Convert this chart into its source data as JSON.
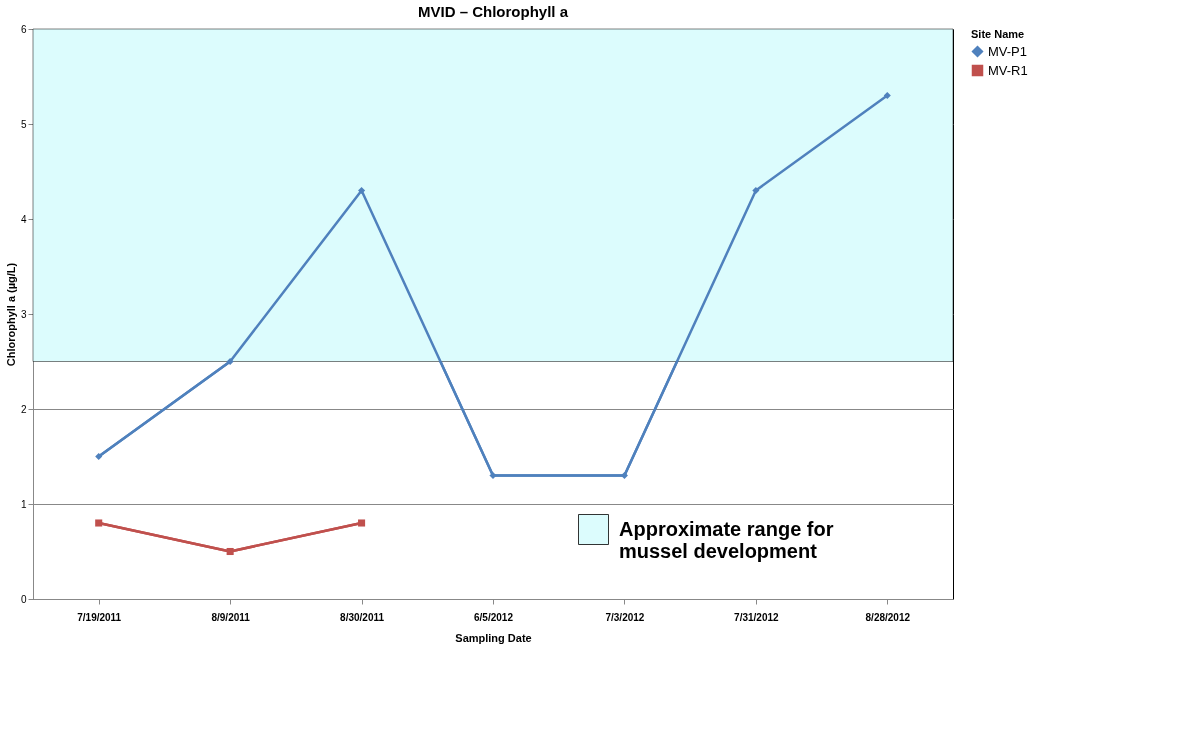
{
  "chart_data": {
    "type": "line",
    "title": "MVID – Chlorophyll  a",
    "xlabel": "Sampling Date",
    "ylabel": "Chlorophyll a (µg/L)",
    "legend_title": "Site Name",
    "categories": [
      "7/19/2011",
      "8/9/2011",
      "8/30/2011",
      "6/5/2012",
      "7/3/2012",
      "7/31/2012",
      "8/28/2012"
    ],
    "series": [
      {
        "name": "MV-P1",
        "color": "#4f81bd",
        "marker": "diamond",
        "values": [
          1.5,
          2.5,
          4.3,
          1.3,
          1.3,
          4.3,
          5.3
        ]
      },
      {
        "name": "MV-R1",
        "color": "#c0504d",
        "marker": "square",
        "values": [
          0.8,
          0.5,
          0.8,
          null,
          null,
          null,
          null
        ]
      }
    ],
    "ylim": [
      0,
      6
    ],
    "yticks": [
      0,
      1,
      2,
      3,
      4,
      5,
      6
    ],
    "grid": "y",
    "legend": "right",
    "bands": [
      {
        "axis": "y",
        "from": 2.5,
        "to": 6,
        "label": "Approximate range for mussel development",
        "color": "#dcfcfd"
      }
    ]
  }
}
